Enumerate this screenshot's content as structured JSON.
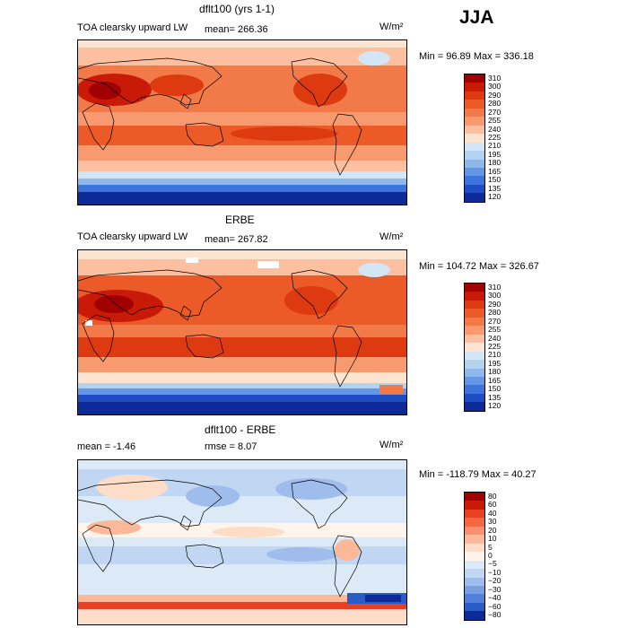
{
  "season": "JJA",
  "units": "W/m²",
  "panels": [
    {
      "title": "dflt100 (yrs 1-1)",
      "left_label": "TOA clearsky upward LW",
      "stat": "mean= 266.36",
      "minmax": "Min =  96.89 Max = 336.18",
      "levels": [
        "310",
        "300",
        "290",
        "280",
        "270",
        "255",
        "240",
        "225",
        "210",
        "195",
        "180",
        "165",
        "150",
        "135",
        "120"
      ],
      "colors": [
        "#a00000",
        "#c81a06",
        "#de3a12",
        "#ec5a28",
        "#f27a48",
        "#f89a70",
        "#fcc0a0",
        "#fde4d0",
        "#d2e6f6",
        "#b2d2f2",
        "#8cb8ec",
        "#6496e6",
        "#3c74dc",
        "#1e4cc4",
        "#0c2a98"
      ]
    },
    {
      "title": "ERBE",
      "left_label": "TOA clearsky upward LW",
      "stat": "mean= 267.82",
      "minmax": "Min = 104.72 Max = 326.67",
      "levels": [
        "310",
        "300",
        "290",
        "280",
        "270",
        "255",
        "240",
        "225",
        "210",
        "195",
        "180",
        "165",
        "150",
        "135",
        "120"
      ],
      "colors": [
        "#a00000",
        "#c81a06",
        "#de3a12",
        "#ec5a28",
        "#f27a48",
        "#f89a70",
        "#fcc0a0",
        "#fde4d0",
        "#d2e6f6",
        "#b2d2f2",
        "#8cb8ec",
        "#6496e6",
        "#3c74dc",
        "#1e4cc4",
        "#0c2a98"
      ]
    },
    {
      "title": "dflt100 - ERBE",
      "left_label": "mean =   -1.46",
      "stat": "rmse =    8.07",
      "minmax": "Min = -118.79 Max =  40.27",
      "levels": [
        "80",
        "60",
        "40",
        "30",
        "20",
        "10",
        "5",
        "0",
        "−5",
        "−10",
        "−20",
        "−30",
        "−40",
        "−60",
        "−80"
      ],
      "colors": [
        "#a00000",
        "#c81a06",
        "#e84020",
        "#f26840",
        "#f89070",
        "#fcb898",
        "#fddcc8",
        "#fff4ec",
        "#dceaf8",
        "#c0d6f2",
        "#9ebcec",
        "#7aa0e4",
        "#5280da",
        "#2a5cc8",
        "#0c2a98"
      ]
    }
  ]
}
